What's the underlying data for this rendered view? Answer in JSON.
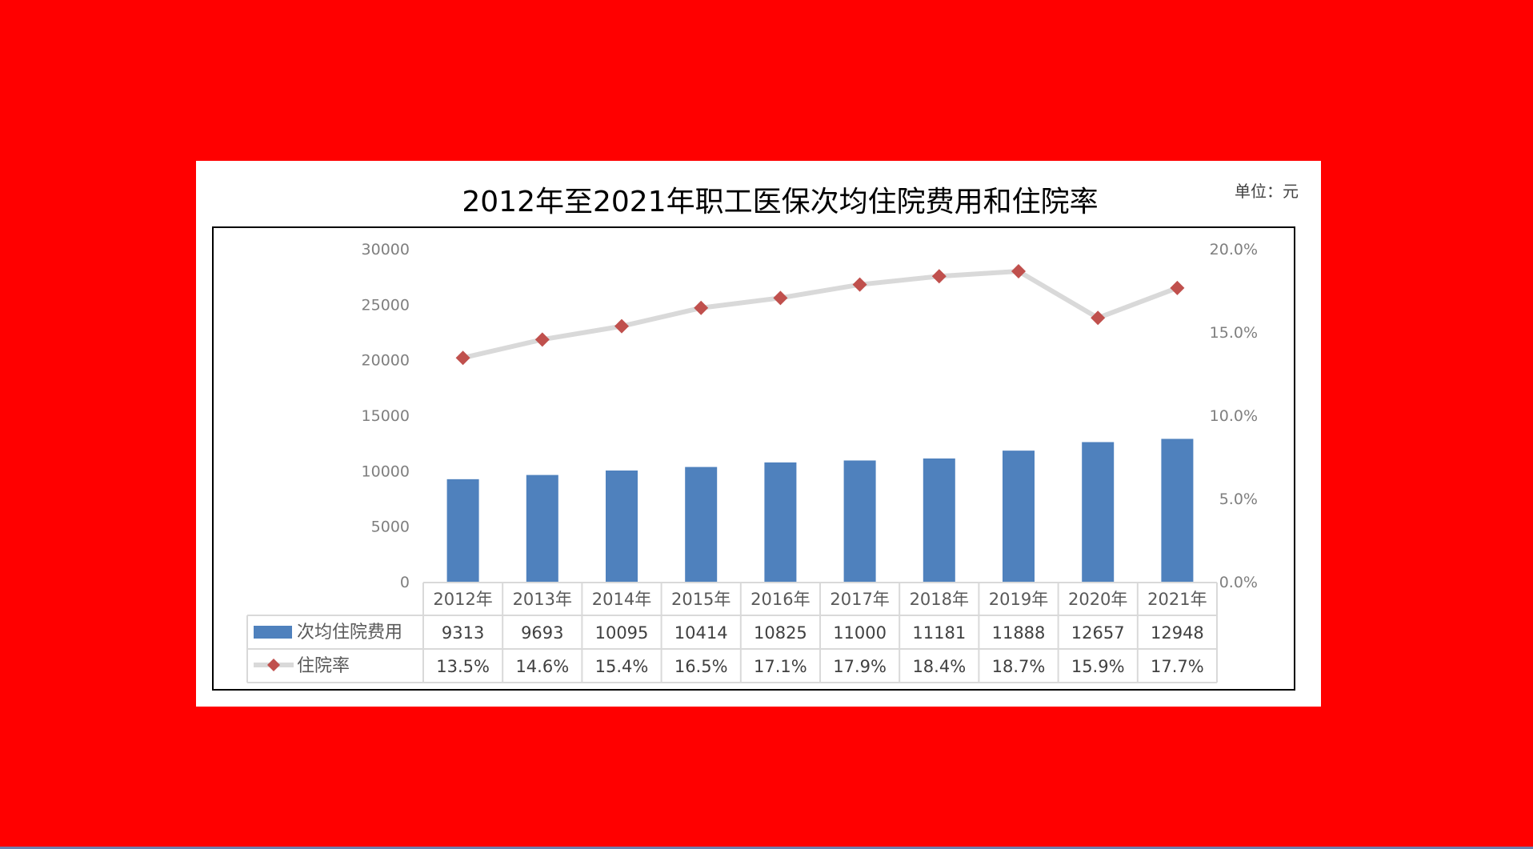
{
  "slide": {
    "background_color": "#ff0000",
    "title": "2012年至2021年职工医保次均住院费用和住院率",
    "unit": "单位：元"
  },
  "chart_data": {
    "type": "bar",
    "title": "2012年至2021年职工医保次均住院费用和住院率",
    "categories": [
      "2012年",
      "2013年",
      "2014年",
      "2015年",
      "2016年",
      "2017年",
      "2018年",
      "2019年",
      "2020年",
      "2021年"
    ],
    "series": [
      {
        "name": "次均住院费用",
        "type": "bar",
        "axis": "left",
        "color": "#4f81bd",
        "values": [
          9313,
          9693,
          10095,
          10414,
          10825,
          11000,
          11181,
          11888,
          12657,
          12948
        ],
        "labels": [
          "9313",
          "9693",
          "10095",
          "10414",
          "10825",
          "11000",
          "11181",
          "11888",
          "12657",
          "12948"
        ]
      },
      {
        "name": "住院率",
        "type": "line",
        "axis": "right",
        "line_color": "#d9d9d9",
        "marker_color": "#c0504d",
        "marker": "diamond",
        "values": [
          13.5,
          14.6,
          15.4,
          16.5,
          17.1,
          17.9,
          18.4,
          18.7,
          15.9,
          17.7
        ],
        "labels": [
          "13.5%",
          "14.6%",
          "15.4%",
          "16.5%",
          "17.1%",
          "17.9%",
          "18.4%",
          "18.7%",
          "15.9%",
          "17.7%"
        ]
      }
    ],
    "y_left": {
      "min": 0,
      "max": 30000,
      "ticks": [
        "0",
        "5000",
        "10000",
        "15000",
        "20000",
        "25000",
        "30000"
      ]
    },
    "y_right": {
      "min": 0,
      "max": 20,
      "ticks": [
        "0.0%",
        "5.0%",
        "10.0%",
        "15.0%",
        "20.0%"
      ]
    },
    "grid": false,
    "legend": "data-table",
    "data_table": true
  }
}
